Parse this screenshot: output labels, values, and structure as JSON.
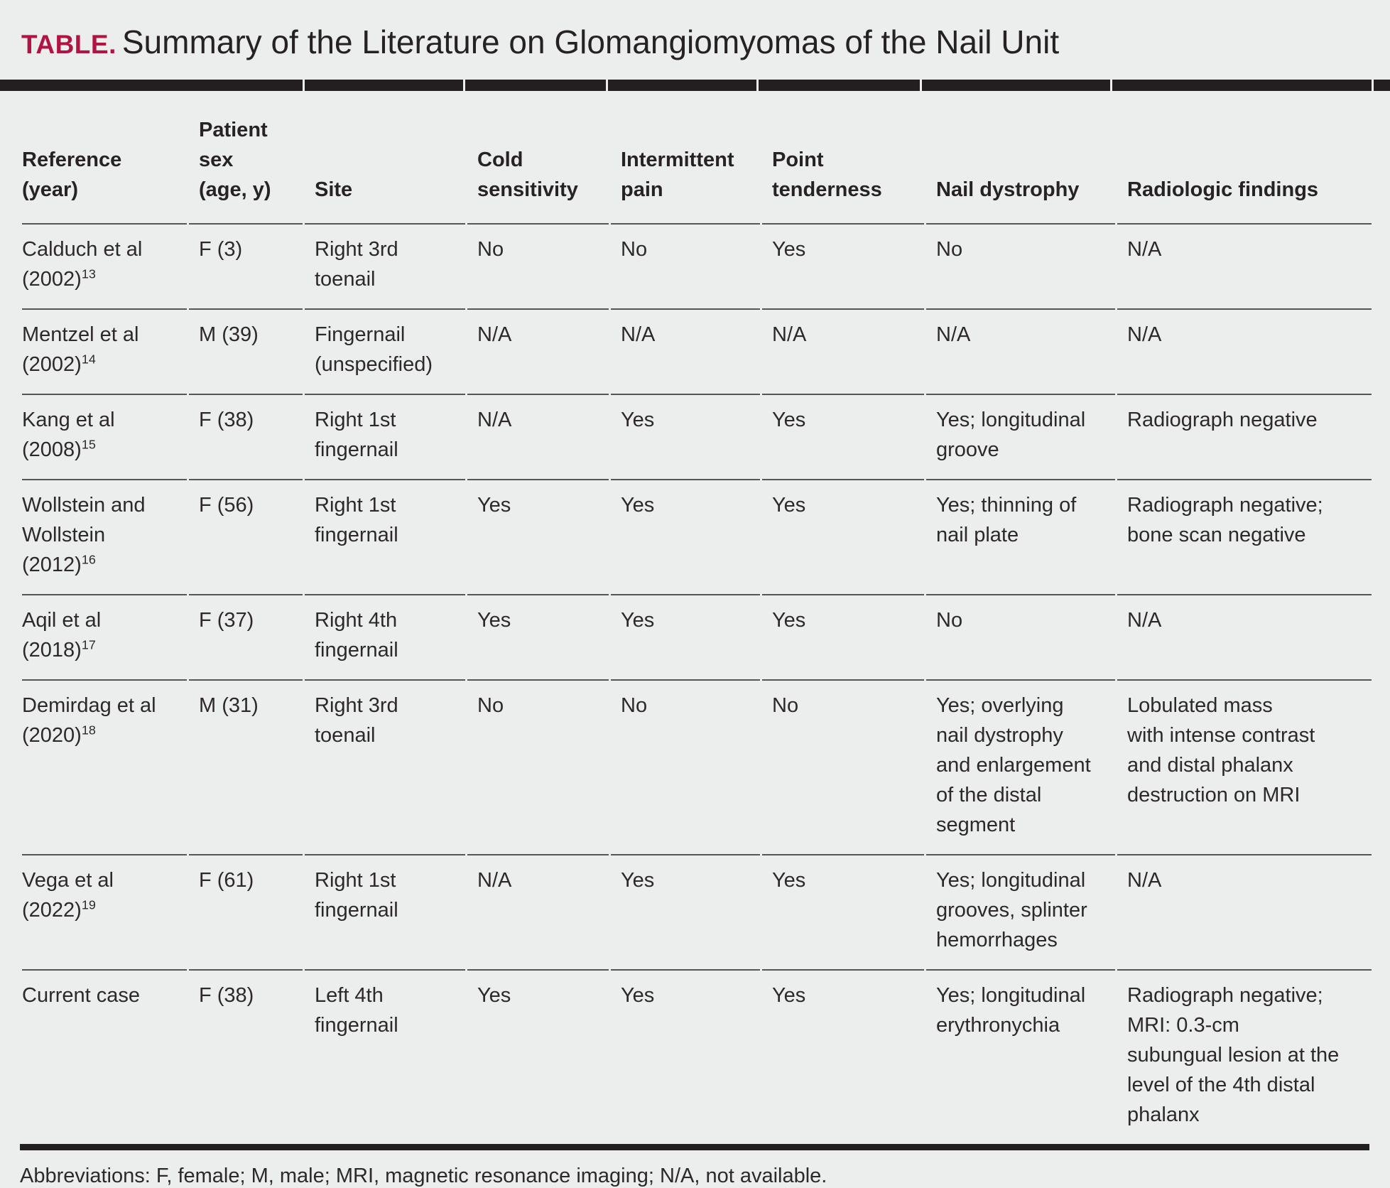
{
  "page": {
    "label": "TABLE.",
    "title": "Summary of the Literature on Glomangiomyomas of the Nail Unit",
    "footnote": "Abbreviations: F, female; M, male; MRI, magnetic resonance imaging; N/A, not available."
  },
  "colors": {
    "page_bg": "#eceded",
    "band_black": "#231f20",
    "rule_gray": "#565456",
    "text_dark": "#2d292a",
    "accent_red": "#b01442"
  },
  "columns": [
    "Reference\n(year)",
    "Patient\nsex\n(age, y)",
    "Site",
    "Cold\nsensitivity",
    "Intermittent\npain",
    "Point\ntenderness",
    "Nail dystrophy",
    "Radiologic findings"
  ],
  "rows": [
    {
      "reference": "Calduch et al\n(2002)",
      "ref_sup": "13",
      "sex_age": "F (3)",
      "site": "Right 3rd\ntoenail",
      "cold": "No",
      "pain": "No",
      "tenderness": "Yes",
      "dystrophy": "No",
      "radiologic": "N/A"
    },
    {
      "reference": "Mentzel et al\n(2002)",
      "ref_sup": "14",
      "sex_age": "M (39)",
      "site": "Fingernail\n(unspecified)",
      "cold": "N/A",
      "pain": "N/A",
      "tenderness": "N/A",
      "dystrophy": "N/A",
      "radiologic": "N/A"
    },
    {
      "reference": "Kang et al\n(2008)",
      "ref_sup": "15",
      "sex_age": "F (38)",
      "site": "Right 1st\nfingernail",
      "cold": "N/A",
      "pain": "Yes",
      "tenderness": "Yes",
      "dystrophy": "Yes; longitudinal\ngroove",
      "radiologic": "Radiograph negative"
    },
    {
      "reference": "Wollstein and\nWollstein\n(2012)",
      "ref_sup": "16",
      "sex_age": "F (56)",
      "site": "Right 1st\nfingernail",
      "cold": "Yes",
      "pain": "Yes",
      "tenderness": "Yes",
      "dystrophy": "Yes; thinning of\nnail plate",
      "radiologic": "Radiograph negative;\nbone scan negative"
    },
    {
      "reference": "Aqil et al\n(2018)",
      "ref_sup": "17",
      "sex_age": "F (37)",
      "site": "Right 4th\nfingernail",
      "cold": "Yes",
      "pain": "Yes",
      "tenderness": "Yes",
      "dystrophy": "No",
      "radiologic": "N/A"
    },
    {
      "reference": "Demirdag et al\n(2020)",
      "ref_sup": "18",
      "sex_age": "M (31)",
      "site": "Right 3rd\ntoenail",
      "cold": "No",
      "pain": "No",
      "tenderness": "No",
      "dystrophy": "Yes; overlying\nnail dystrophy\nand enlargement\nof the distal\nsegment",
      "radiologic": "Lobulated mass\nwith intense contrast\nand distal phalanx\ndestruction on MRI"
    },
    {
      "reference": "Vega et al\n(2022)",
      "ref_sup": "19",
      "sex_age": "F (61)",
      "site": "Right 1st\nfingernail",
      "cold": "N/A",
      "pain": "Yes",
      "tenderness": "Yes",
      "dystrophy": "Yes; longitudinal\ngrooves, splinter\nhemorrhages",
      "radiologic": "N/A"
    },
    {
      "reference": "Current case",
      "ref_sup": "",
      "sex_age": "F (38)",
      "site": "Left 4th\nfingernail",
      "cold": "Yes",
      "pain": "Yes",
      "tenderness": "Yes",
      "dystrophy": "Yes; longitudinal\nerythronychia",
      "radiologic": "Radiograph negative;\nMRI: 0.3-cm\nsubungual lesion at the\nlevel of the 4th distal\nphalanx"
    }
  ]
}
